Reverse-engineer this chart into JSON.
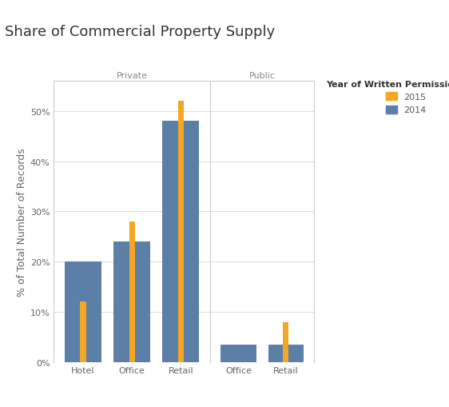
{
  "title": "Share of Commercial Property Supply",
  "ylabel": "% of Total Number of Records",
  "legend_title": "Year of Written Permission Date",
  "legend_labels": [
    "2015",
    "2014"
  ],
  "colors": {
    "2015": "#F5A623",
    "2014": "#5B7FA6"
  },
  "facets": [
    {
      "label": "Private",
      "categories": [
        "Hotel",
        "Office",
        "Retail"
      ],
      "values_2015": [
        12.0,
        28.0,
        52.0
      ],
      "values_2014": [
        20.0,
        24.0,
        48.0
      ]
    },
    {
      "label": "Public",
      "categories": [
        "Office",
        "Retail"
      ],
      "values_2015": [
        0.0,
        8.0
      ],
      "values_2014": [
        3.5,
        3.5
      ]
    }
  ],
  "ylim": [
    0,
    56
  ],
  "yticks": [
    0,
    10,
    20,
    30,
    40,
    50
  ],
  "ytick_labels": [
    "0%",
    "10%",
    "20%",
    "30%",
    "40%",
    "50%"
  ],
  "background_color": "#FFFFFF",
  "grid_color": "#DDDDDD",
  "title_fontsize": 13,
  "axis_label_fontsize": 9,
  "tick_fontsize": 8,
  "facet_label_fontsize": 8,
  "legend_fontsize": 8,
  "legend_title_fontsize": 8
}
